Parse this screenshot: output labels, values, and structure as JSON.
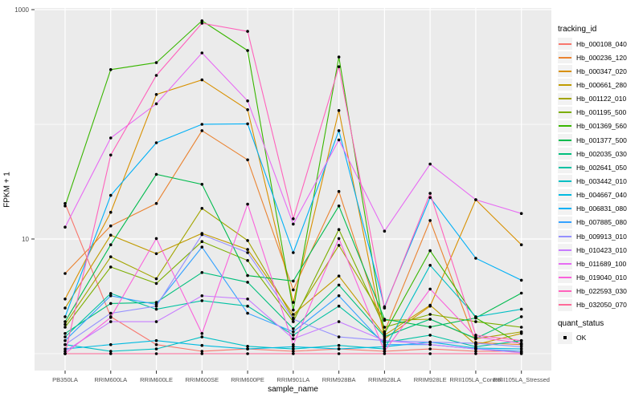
{
  "chart_data": {
    "type": "line",
    "title": "",
    "xlabel": "sample_name",
    "ylabel": "FPKM + 1",
    "y_scale": "log10",
    "y_axis": {
      "tick_labels": [
        {
          "value": 1000,
          "label": "1000"
        },
        {
          "value": 10,
          "label": "10"
        }
      ],
      "gridlines_major": [
        10,
        1000
      ],
      "gridlines_minor": [
        1,
        100
      ],
      "range_note": "log scale, panel spans ~0.7 to ~1030"
    },
    "categories": [
      "PB350LA",
      "RRIM600LA",
      "RRIM600LE",
      "RRIM600SE",
      "RRIM600PE",
      "RRIM901LA",
      "RRIM928BA",
      "RRIM928LA",
      "RRIM928LE",
      "RRII105LA_Control",
      "RRII105LA_Stressed"
    ],
    "series": [
      {
        "name": "Hb_000108_040",
        "color": "#F8766D",
        "values": [
          20.4,
          2.1,
          1.2,
          1.05,
          1.1,
          1.05,
          1.1,
          1.05,
          1.1,
          1.05,
          1.05
        ]
      },
      {
        "name": "Hb_000236_120",
        "color": "#EA8331",
        "values": [
          5.0,
          13,
          20.4,
          88,
          49,
          3.6,
          26,
          1.55,
          14.5,
          1.25,
          1.2
        ]
      },
      {
        "name": "Hb_000347_020",
        "color": "#D89000",
        "values": [
          3.0,
          17.1,
          182,
          244,
          134,
          2.8,
          132,
          1.35,
          2.6,
          22,
          8.9
        ]
      },
      {
        "name": "Hb_000661_280",
        "color": "#C09B00",
        "values": [
          2.5,
          10.8,
          7.45,
          11.2,
          8.1,
          2.2,
          4.75,
          1.45,
          2.65,
          1.2,
          1.5
        ]
      },
      {
        "name": "Hb_001122_010",
        "color": "#A3A500",
        "values": [
          1.8,
          7.0,
          4.5,
          18.5,
          9.7,
          2.05,
          8.8,
          1.95,
          2.0,
          1.35,
          1.55
        ]
      },
      {
        "name": "Hb_001195_500",
        "color": "#7CAE00",
        "values": [
          1.7,
          5.7,
          4.1,
          9.5,
          6.5,
          1.9,
          12.1,
          1.7,
          2.2,
          1.9,
          1.7
        ]
      },
      {
        "name": "Hb_001369_560",
        "color": "#39B600",
        "values": [
          19.4,
          300,
          345,
          800,
          440,
          2.4,
          386,
          1.5,
          7.9,
          2.05,
          1.2
        ]
      },
      {
        "name": "Hb_001377_500",
        "color": "#00BB4E",
        "values": [
          1.9,
          8.9,
          36.6,
          30,
          4.8,
          4.3,
          19.4,
          2.0,
          1.71,
          2.05,
          3.37
        ]
      },
      {
        "name": "Hb_002035_030",
        "color": "#00BF7D",
        "values": [
          1.5,
          2.74,
          2.8,
          5.1,
          4.2,
          1.65,
          3.97,
          1.41,
          2.0,
          1.36,
          2.1
        ]
      },
      {
        "name": "Hb_002641_050",
        "color": "#00C1A3",
        "values": [
          1.4,
          3.35,
          2.44,
          2.9,
          2.6,
          1.45,
          2.6,
          1.25,
          1.45,
          1.15,
          1.3
        ]
      },
      {
        "name": "Hb_003442_010",
        "color": "#00BFC4",
        "values": [
          1.2,
          1.05,
          1.1,
          1.4,
          1.16,
          1.1,
          1.18,
          1.1,
          5.9,
          2.1,
          2.44
        ]
      },
      {
        "name": "Hb_004667_040",
        "color": "#00BAE0",
        "values": [
          1.1,
          1.2,
          1.3,
          1.18,
          1.1,
          1.15,
          1.1,
          1.15,
          1.26,
          1.12,
          1.1
        ]
      },
      {
        "name": "Hb_006831_080",
        "color": "#00B0F6",
        "values": [
          2.1,
          24,
          69,
          100,
          101,
          7.6,
          88,
          2.56,
          23,
          6.8,
          4.37
        ]
      },
      {
        "name": "Hb_007885_080",
        "color": "#35A2FF",
        "values": [
          1.3,
          3.2,
          2.69,
          8.5,
          2.25,
          1.55,
          3.2,
          1.2,
          1.2,
          1.1,
          1.05
        ]
      },
      {
        "name": "Hb_009913_010",
        "color": "#9590FF",
        "values": [
          1.2,
          2.25,
          2.6,
          10.9,
          7.6,
          2.0,
          1.4,
          1.3,
          1.26,
          1.23,
          1.15
        ]
      },
      {
        "name": "Hb_010423_010",
        "color": "#C77CFF",
        "values": [
          1.05,
          1.9,
          1.9,
          3.2,
          3.0,
          1.35,
          1.9,
          1.3,
          1.2,
          1.1,
          1.02
        ]
      },
      {
        "name": "Hb_011689_100",
        "color": "#E76BF3",
        "values": [
          12.7,
          76,
          151,
          419,
          160,
          13.5,
          73,
          11.7,
          45,
          22,
          16.7
        ]
      },
      {
        "name": "Hb_019040_010",
        "color": "#FA62DB",
        "values": [
          1.0,
          2.07,
          10.1,
          1.5,
          20.1,
          1.2,
          10.1,
          1.05,
          3.66,
          1.4,
          1.23
        ]
      },
      {
        "name": "Hb_022593_030",
        "color": "#FF62BC",
        "values": [
          1.0,
          54,
          267,
          760,
          646,
          15,
          318,
          2.5,
          25,
          1.45,
          1.3
        ]
      },
      {
        "name": "Hb_032050_070",
        "color": "#FF6A98",
        "values": [
          1.0,
          1.0,
          1.0,
          1.0,
          1.0,
          1.0,
          1.0,
          1.0,
          1.0,
          1.0,
          1.0
        ]
      }
    ],
    "legend": {
      "tracking_title": "tracking_id",
      "quant_title": "quant_status",
      "quant_items": [
        {
          "label": "OK",
          "marker": "black-square"
        }
      ],
      "position": "right"
    },
    "point_color": "#000000"
  },
  "colors": {
    "panel_bg": "#EBEBEB",
    "gridline": "#FFFFFF",
    "tick_label": "#4D4D4D",
    "axis_title": "#000000",
    "legend_key_bg": "#F2F2F2"
  }
}
